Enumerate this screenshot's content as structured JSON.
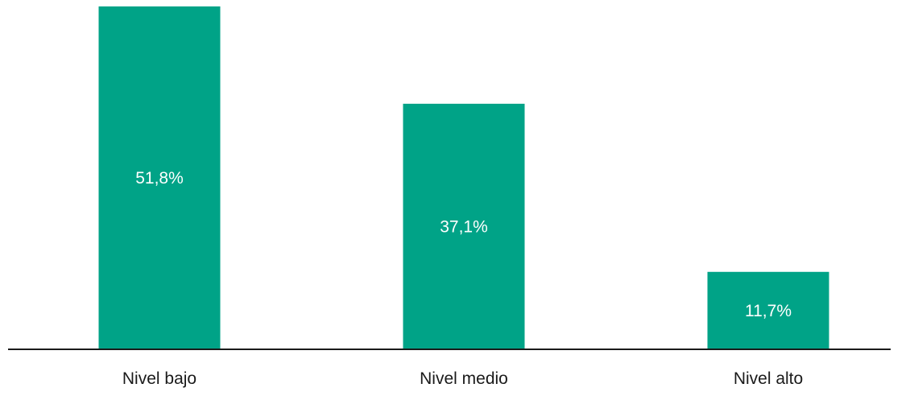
{
  "chart_data": {
    "type": "bar",
    "categories": [
      "Nivel bajo",
      "Nivel medio",
      "Nivel alto"
    ],
    "values": [
      51.8,
      37.1,
      11.7
    ],
    "value_labels": [
      "51,8%",
      "37,1%",
      "11,7%"
    ],
    "title": "",
    "xlabel": "",
    "ylabel": "",
    "ylim": [
      0,
      51.8
    ],
    "grid": false,
    "legend": "none",
    "colors": {
      "bar": "#00a387",
      "axis": "#1a1a1a",
      "label": "#ffffff"
    }
  }
}
